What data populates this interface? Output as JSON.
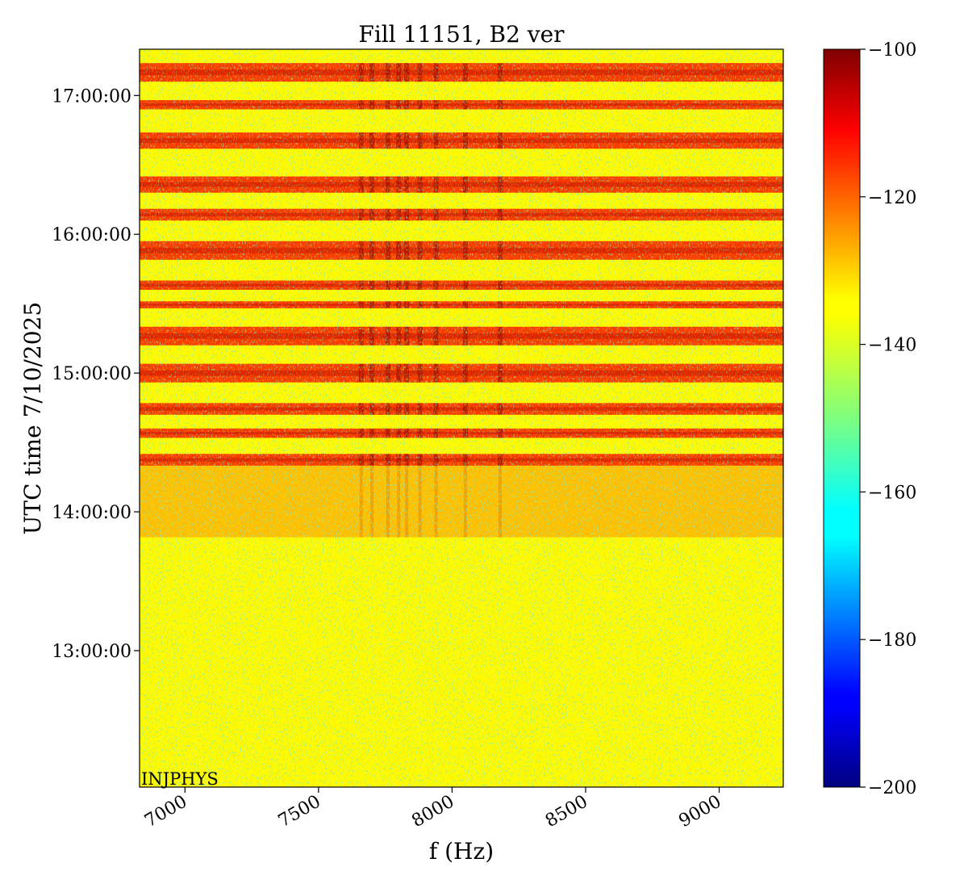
{
  "chart_data": {
    "type": "heatmap",
    "title": "Fill 11151, B2 ver",
    "xlabel": "f (Hz)",
    "ylabel": "UTC time 7/10/2025",
    "x_range": [
      6830,
      9240
    ],
    "y_range": [
      "12:01:00",
      "17:20:00"
    ],
    "x_ticks": [
      7000,
      7500,
      8000,
      8500,
      9000
    ],
    "x_tick_labels": [
      "7000",
      "7500",
      "8000",
      "8500",
      "9000"
    ],
    "y_ticks": [
      "13:00:00",
      "14:00:00",
      "15:00:00",
      "16:00:00",
      "17:00:00"
    ],
    "y_tick_labels": [
      "13:00:00",
      "14:00:00",
      "15:00:00",
      "16:00:00",
      "17:00:00"
    ],
    "colorbar": {
      "colormap": "jet",
      "range": [
        -200,
        -100
      ],
      "ticks": [
        -200,
        -180,
        -160,
        -140,
        -120,
        -100
      ],
      "tick_labels": [
        "−200",
        "−180",
        "−160",
        "−140",
        "−120",
        "−100"
      ]
    },
    "annotation": "INJPHYS",
    "background_level_db": -137,
    "pre_injection_level_db": -130,
    "active_band_level_db": -118,
    "active_bands": [
      {
        "start": "14:20:00",
        "end": "14:25:00"
      },
      {
        "start": "14:32:00",
        "end": "14:36:00"
      },
      {
        "start": "14:42:00",
        "end": "14:47:00"
      },
      {
        "start": "14:56:00",
        "end": "15:04:00"
      },
      {
        "start": "15:12:00",
        "end": "15:20:00"
      },
      {
        "start": "15:28:00",
        "end": "15:31:00"
      },
      {
        "start": "15:36:00",
        "end": "15:40:00"
      },
      {
        "start": "15:49:00",
        "end": "15:57:00"
      },
      {
        "start": "16:06:00",
        "end": "16:11:00"
      },
      {
        "start": "16:18:00",
        "end": "16:25:00"
      },
      {
        "start": "16:37:00",
        "end": "16:44:00"
      },
      {
        "start": "16:54:00",
        "end": "16:58:00"
      },
      {
        "start": "17:06:00",
        "end": "17:14:00"
      }
    ],
    "pre_injection_band": {
      "start": "13:49:00",
      "end": "14:20:00"
    },
    "dark_lines_hz": [
      7660,
      7700,
      7760,
      7800,
      7830,
      7880,
      7940,
      8050,
      8180
    ]
  }
}
